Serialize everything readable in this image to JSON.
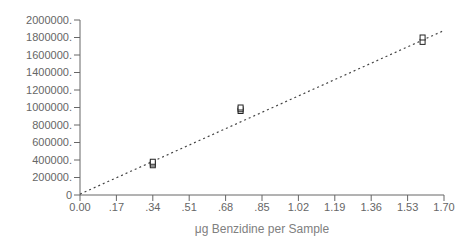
{
  "chart_data": {
    "type": "scatter",
    "xlabel": "μg Benzidine per Sample",
    "xlim": [
      0.0,
      1.7
    ],
    "ylim": [
      0,
      2000000
    ],
    "xticks": [
      {
        "value": 0.0,
        "label": "0.00"
      },
      {
        "value": 0.17,
        "label": ".17"
      },
      {
        "value": 0.34,
        "label": ".34"
      },
      {
        "value": 0.51,
        "label": ".51"
      },
      {
        "value": 0.68,
        "label": ".68"
      },
      {
        "value": 0.85,
        "label": ".85"
      },
      {
        "value": 1.02,
        "label": "1.02"
      },
      {
        "value": 1.19,
        "label": "1.19"
      },
      {
        "value": 1.36,
        "label": "1.36"
      },
      {
        "value": 1.53,
        "label": "1.53"
      },
      {
        "value": 1.7,
        "label": "1.70"
      }
    ],
    "yticks": [
      0,
      {
        "value": 200000,
        "label": "200000."
      },
      {
        "value": 400000,
        "label": "400000."
      },
      {
        "value": 600000,
        "label": "600000."
      },
      {
        "value": 800000,
        "label": "800000."
      },
      {
        "value": 1000000,
        "label": "1000000."
      },
      {
        "value": 1200000,
        "label": "1200000."
      },
      {
        "value": 1400000,
        "label": "1400000."
      },
      {
        "value": 1600000,
        "label": "1600000."
      },
      {
        "value": 1800000,
        "label": "1800000."
      },
      {
        "value": 2000000,
        "label": "2000000."
      }
    ],
    "series": [
      {
        "type": "line",
        "line_style": "dotted",
        "color": "#444444",
        "x": [
          0.0,
          1.7
        ],
        "values": [
          10000,
          1880000
        ]
      },
      {
        "type": "scatter",
        "marker": "square",
        "color": "#222222",
        "x": [
          0.34,
          0.34,
          0.34,
          0.75,
          0.75,
          0.75,
          1.6,
          1.6
        ],
        "values": [
          340000,
          360000,
          380000,
          960000,
          980000,
          1000000,
          1750000,
          1800000
        ]
      }
    ]
  }
}
